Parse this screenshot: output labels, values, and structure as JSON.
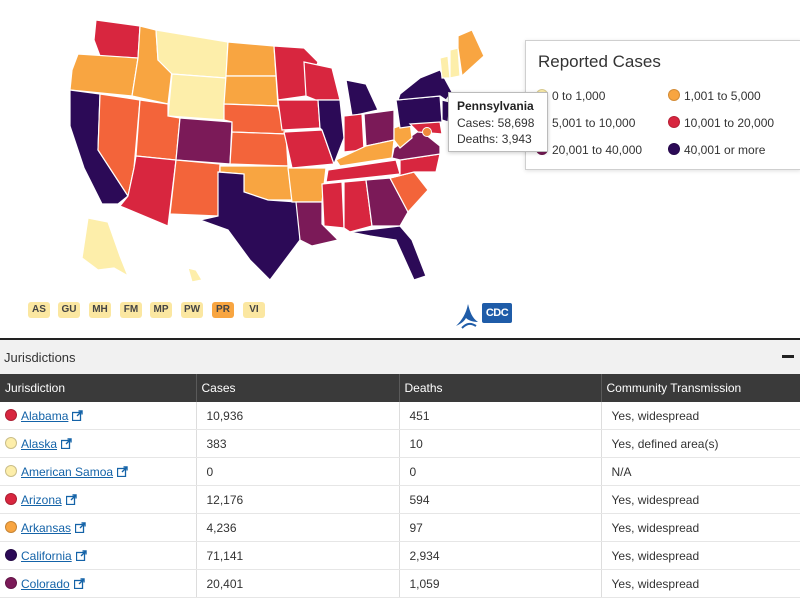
{
  "legend": {
    "title": "Reported Cases",
    "items": [
      {
        "label": "0 to 1,000",
        "color": "#fdeeaa"
      },
      {
        "label": "1,001 to 5,000",
        "color": "#f8a541"
      },
      {
        "label": "5,001 to 10,000",
        "color": "#f3643a"
      },
      {
        "label": "10,001 to 20,000",
        "color": "#d8263f"
      },
      {
        "label": "20,001 to 40,000",
        "color": "#7b1a58"
      },
      {
        "label": "40,001 or more",
        "color": "#2c0a57"
      }
    ]
  },
  "tooltip": {
    "state": "Pennsylvania",
    "cases_line": "Cases: 58,698",
    "deaths_line": "Deaths: 3,943"
  },
  "territories": [
    "AS",
    "GU",
    "MH",
    "FM",
    "MP",
    "PW",
    "PR",
    "VI"
  ],
  "logo": {
    "text": "CDC"
  },
  "section": {
    "title": "Jurisdictions"
  },
  "table": {
    "headers": [
      "Jurisdiction",
      "Cases",
      "Deaths",
      "Community Transmission"
    ],
    "rows": [
      {
        "name": "Alabama",
        "cases": "10,936",
        "deaths": "451",
        "transmission": "Yes, widespread",
        "color": "#d8263f"
      },
      {
        "name": "Alaska",
        "cases": "383",
        "deaths": "10",
        "transmission": "Yes, defined area(s)",
        "color": "#fdeeaa"
      },
      {
        "name": "American Samoa",
        "cases": "0",
        "deaths": "0",
        "transmission": "N/A",
        "color": "#fdeeaa"
      },
      {
        "name": "Arizona",
        "cases": "12,176",
        "deaths": "594",
        "transmission": "Yes, widespread",
        "color": "#d8263f"
      },
      {
        "name": "Arkansas",
        "cases": "4,236",
        "deaths": "97",
        "transmission": "Yes, widespread",
        "color": "#f8a541"
      },
      {
        "name": "California",
        "cases": "71,141",
        "deaths": "2,934",
        "transmission": "Yes, widespread",
        "color": "#2c0a57"
      },
      {
        "name": "Colorado",
        "cases": "20,401",
        "deaths": "1,059",
        "transmission": "Yes, widespread",
        "color": "#7b1a58"
      }
    ]
  }
}
